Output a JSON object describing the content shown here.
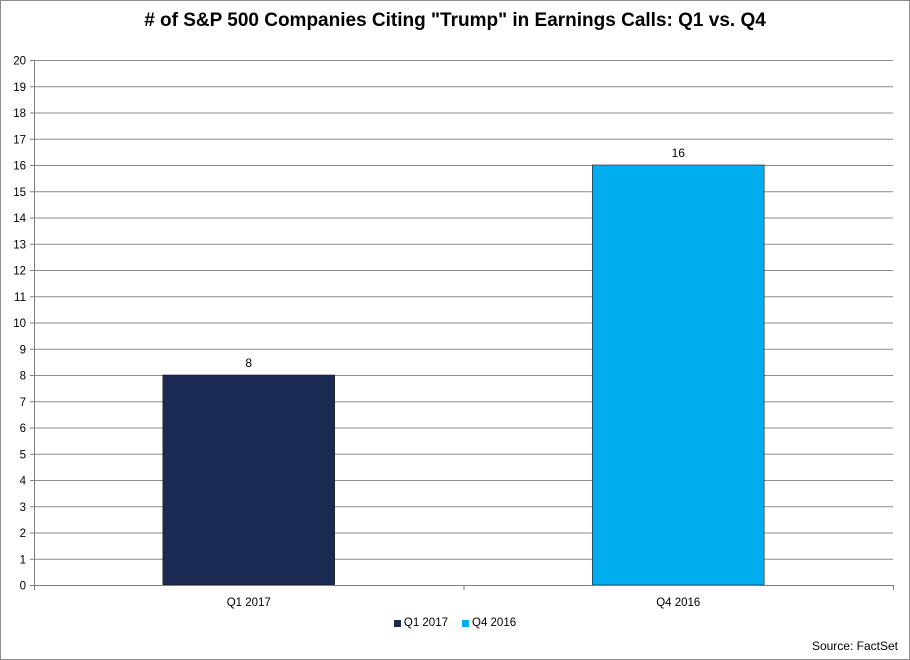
{
  "chart_data": {
    "type": "bar",
    "title": "# of S&P 500 Companies Citing \"Trump\" in Earnings Calls: Q1 vs. Q4",
    "categories": [
      "Q1 2017",
      "Q4 2016"
    ],
    "values": [
      8,
      16
    ],
    "colors": [
      "#1b2a52",
      "#00aeef"
    ],
    "ylim": [
      0,
      20
    ],
    "ytick_step": 1,
    "grid": true,
    "legend": {
      "placement": "bottom",
      "entries": [
        {
          "name": "Q1 2017",
          "color": "#1b2a52"
        },
        {
          "name": "Q4 2016",
          "color": "#00aeef"
        }
      ]
    },
    "source": "Source: FactSet"
  }
}
